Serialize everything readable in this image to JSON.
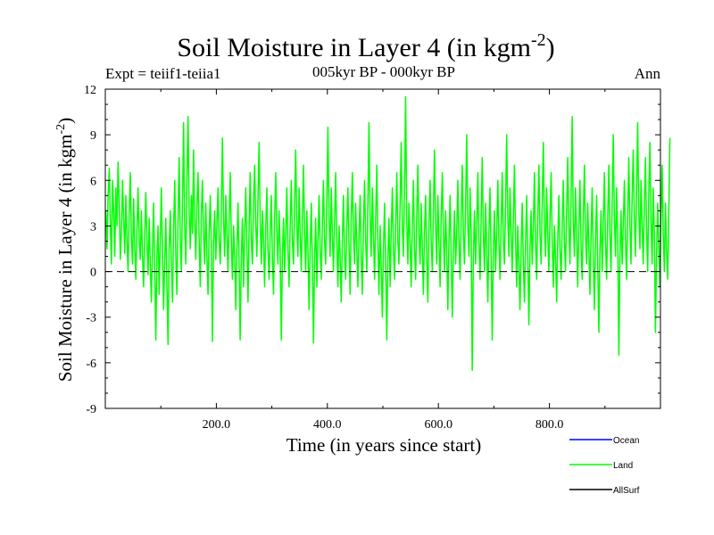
{
  "chart_data": {
    "type": "line",
    "title_main": "Soil Moisture in Layer 4 (in kgm",
    "title_sup": "-2",
    "title_close": ")",
    "subtitle": "005kyr BP - 000kyr BP",
    "expt_label": "Expt = teiif1-teiia1",
    "season_label": "Ann",
    "xlabel": "Time (in years since start)",
    "ylabel_main": "Soil Moisture in Layer 4 (in kgm",
    "ylabel_sup": "-2",
    "ylabel_close": ")",
    "xlim": [
      0,
      1000
    ],
    "ylim": [
      -9,
      12
    ],
    "x_ticks": [
      200,
      400,
      600,
      800
    ],
    "x_tick_labels": [
      "200.0",
      "400.0",
      "600.0",
      "800.0"
    ],
    "y_ticks": [
      -9,
      -6,
      -3,
      0,
      3,
      6,
      9,
      12
    ],
    "y_tick_labels": [
      "-9",
      "-6",
      "-3",
      "0",
      "3",
      "6",
      "9",
      "12"
    ],
    "zero_line": "dashed",
    "legend_position": "bottom-right",
    "legend": [
      {
        "name": "Ocean",
        "color": "#0000ff"
      },
      {
        "name": "Land",
        "color": "#00ff00"
      },
      {
        "name": "AllSurf",
        "color": "#000000"
      }
    ],
    "series": [
      {
        "name": "Land",
        "color": "#00ff00",
        "x_start": 1,
        "x_step": 2,
        "values": [
          4.0,
          1.5,
          5.0,
          6.8,
          3.2,
          0.5,
          6.0,
          4.0,
          1.0,
          5.5,
          3.0,
          7.2,
          4.5,
          0.8,
          2.5,
          6.0,
          3.5,
          1.2,
          5.0,
          2.0,
          0.0,
          3.8,
          6.5,
          2.2,
          0.5,
          4.8,
          1.5,
          -0.5,
          3.0,
          5.5,
          2.0,
          0.8,
          4.0,
          1.0,
          -1.0,
          2.5,
          5.2,
          1.8,
          -0.2,
          3.5,
          0.5,
          -2.0,
          1.5,
          4.5,
          0.0,
          -4.5,
          1.0,
          3.0,
          -1.5,
          2.0,
          5.5,
          1.2,
          -2.5,
          0.8,
          3.5,
          -1.0,
          -4.8,
          1.5,
          4.0,
          0.5,
          -2.0,
          2.8,
          6.0,
          1.0,
          -1.5,
          3.5,
          7.5,
          2.0,
          0.0,
          4.5,
          9.8,
          3.0,
          0.5,
          6.0,
          10.2,
          4.0,
          1.5,
          5.0,
          2.5,
          8.0,
          3.5,
          0.8,
          4.5,
          6.5,
          2.0,
          -1.0,
          3.8,
          6.0,
          2.5,
          0.5,
          4.5,
          1.0,
          -1.5,
          2.5,
          5.0,
          1.5,
          -4.6,
          2.0,
          4.0,
          0.8,
          3.0,
          5.5,
          2.0,
          0.5,
          4.0,
          8.8,
          3.5,
          1.0,
          5.0,
          2.5,
          0.0,
          3.5,
          6.5,
          2.0,
          -0.5,
          3.0,
          1.0,
          -2.5,
          1.5,
          4.5,
          0.5,
          -4.5,
          1.0,
          3.5,
          -1.0,
          2.5,
          5.5,
          1.5,
          -2.0,
          3.0,
          6.5,
          2.0,
          0.5,
          4.5,
          7.0,
          3.0,
          1.0,
          5.0,
          8.5,
          3.5,
          0.5,
          4.0,
          2.0,
          -1.0,
          3.0,
          5.5,
          1.5,
          -0.5,
          2.5,
          5.0,
          1.0,
          -1.5,
          3.5,
          6.5,
          2.5,
          0.5,
          4.0,
          1.5,
          -4.5,
          1.0,
          3.5,
          0.0,
          2.5,
          5.5,
          1.5,
          -1.0,
          3.0,
          6.0,
          2.0,
          0.5,
          4.5,
          8.0,
          3.0,
          1.0,
          5.5,
          2.5,
          0.0,
          3.5,
          7.0,
          2.5,
          0.0,
          4.0,
          1.5,
          -2.5,
          1.5,
          4.5,
          0.5,
          -4.7,
          1.0,
          3.5,
          -1.0,
          2.0,
          5.0,
          1.5,
          -0.5,
          3.0,
          6.0,
          2.0,
          0.5,
          4.5,
          9.5,
          3.5,
          1.0,
          5.5,
          2.5,
          0.0,
          3.5,
          6.5,
          2.0,
          -1.0,
          3.0,
          1.0,
          -2.0,
          2.0,
          5.0,
          1.0,
          -0.5,
          3.0,
          5.5,
          1.5,
          -1.5,
          3.5,
          6.5,
          2.5,
          0.5,
          4.5,
          1.5,
          -1.0,
          2.5,
          5.0,
          1.0,
          -1.5,
          3.0,
          6.0,
          2.0,
          0.0,
          4.5,
          9.8,
          3.5,
          1.0,
          5.5,
          2.5,
          -0.5,
          3.5,
          7.0,
          2.0,
          -1.5,
          3.0,
          0.5,
          -3.0,
          1.5,
          4.5,
          0.5,
          -4.5,
          1.0,
          3.5,
          -1.0,
          2.5,
          5.5,
          1.5,
          -0.5,
          3.0,
          6.5,
          2.0,
          0.5,
          4.5,
          8.5,
          3.0,
          1.0,
          5.5,
          11.5,
          3.5,
          0.5,
          4.5,
          2.0,
          -1.0,
          3.0,
          6.0,
          1.5,
          -0.5,
          3.5,
          7.0,
          2.5,
          0.5,
          4.5,
          1.5,
          -1.5,
          2.5,
          5.0,
          1.0,
          -2.0,
          3.0,
          6.0,
          2.0,
          0.0,
          4.0,
          8.0,
          3.0,
          0.5,
          5.0,
          2.0,
          -1.0,
          3.5,
          6.5,
          2.5,
          0.0,
          4.0,
          1.5,
          -2.5,
          2.0,
          5.0,
          1.0,
          -3.0,
          1.5,
          4.0,
          0.5,
          2.5,
          6.0,
          2.0,
          -0.5,
          3.5,
          7.0,
          2.5,
          0.5,
          4.5,
          9.0,
          3.0,
          1.0,
          5.5,
          2.5,
          -6.5,
          1.0,
          4.0,
          0.5,
          3.0,
          6.5,
          2.0,
          -0.5,
          3.5,
          7.5,
          2.5,
          0.0,
          4.5,
          1.5,
          -2.0,
          2.5,
          5.5,
          1.0,
          -4.5,
          1.5,
          4.0,
          0.0,
          2.5,
          6.0,
          2.0,
          -0.5,
          3.0,
          6.5,
          2.0,
          0.5,
          4.5,
          9.0,
          3.5,
          1.0,
          5.5,
          2.5,
          0.0,
          3.5,
          7.0,
          2.0,
          -1.0,
          3.0,
          0.5,
          -2.5,
          1.5,
          4.5,
          0.5,
          -2.0,
          2.0,
          5.0,
          1.0,
          -3.5,
          1.5,
          4.0,
          0.5,
          3.0,
          6.5,
          2.0,
          -0.5,
          3.5,
          7.0,
          2.5,
          0.5,
          4.5,
          8.5,
          3.0,
          1.0,
          5.5,
          2.5,
          0.0,
          3.5,
          6.5,
          2.0,
          -1.0,
          3.0,
          1.0,
          -2.0,
          2.0,
          5.0,
          1.5,
          -0.5,
          3.0,
          6.0,
          2.0,
          0.0,
          4.0,
          7.5,
          3.0,
          0.5,
          5.0,
          10.2,
          3.5,
          1.0,
          5.5,
          2.5,
          -1.0,
          3.0,
          6.0,
          1.5,
          -0.5,
          3.5,
          7.0,
          2.5,
          0.5,
          4.5,
          1.5,
          -1.5,
          2.5,
          5.5,
          1.0,
          -2.5,
          2.0,
          5.0,
          0.5,
          -4.0,
          1.5,
          4.0,
          0.0,
          3.0,
          6.5,
          2.0,
          -0.5,
          3.5,
          7.0,
          2.5,
          0.0,
          4.5,
          9.0,
          3.5,
          1.0,
          5.5,
          2.5,
          -5.5,
          1.0,
          4.0,
          0.5,
          3.0,
          6.0,
          2.0,
          -0.5,
          3.5,
          7.5,
          3.0,
          0.5,
          5.0,
          8.0,
          3.5,
          1.0,
          5.5,
          9.8,
          4.0,
          1.5,
          6.0,
          3.0,
          0.5,
          4.5,
          7.5,
          3.0,
          0.0,
          5.0,
          8.5,
          3.5,
          0.5,
          5.5,
          2.5,
          -4.0,
          1.0,
          4.5,
          1.5,
          -1.0,
          3.5,
          7.0,
          2.5,
          0.0,
          4.5,
          1.5,
          -0.5,
          3.5,
          8.8
        ]
      }
    ]
  }
}
